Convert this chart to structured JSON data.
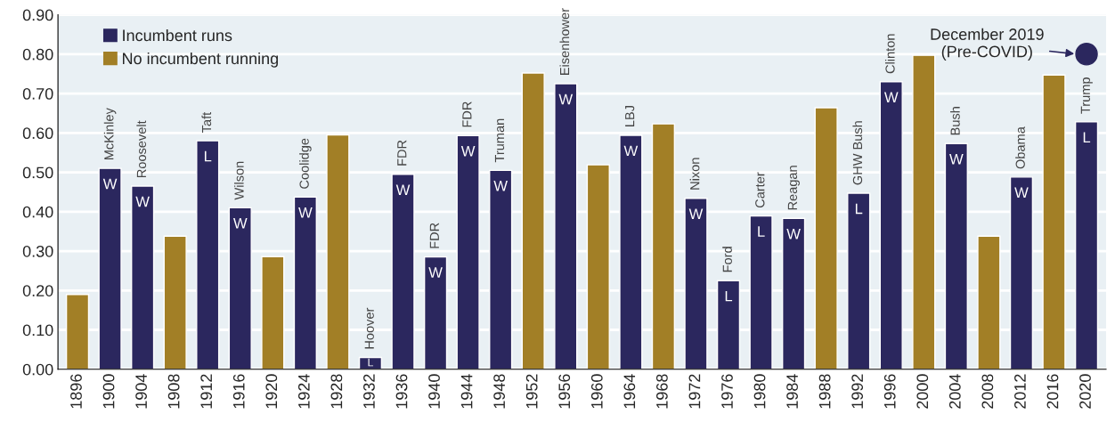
{
  "chart_data": {
    "type": "bar",
    "categories": [
      "1896",
      "1900",
      "1904",
      "1908",
      "1912",
      "1916",
      "1920",
      "1924",
      "1928",
      "1932",
      "1936",
      "1940",
      "1944",
      "1948",
      "1952",
      "1956",
      "1960",
      "1964",
      "1968",
      "1972",
      "1976",
      "1980",
      "1984",
      "1988",
      "1992",
      "1996",
      "2000",
      "2004",
      "2008",
      "2012",
      "2016",
      "2020"
    ],
    "series": [
      {
        "name": "Incumbent runs",
        "color": "#2b275e",
        "values": [
          null,
          0.51,
          0.465,
          null,
          0.58,
          0.41,
          null,
          0.437,
          null,
          0.03,
          0.495,
          0.285,
          0.593,
          0.505,
          null,
          0.725,
          null,
          0.594,
          null,
          0.434,
          0.225,
          0.389,
          0.383,
          null,
          0.447,
          0.73,
          null,
          0.573,
          null,
          0.488,
          null,
          0.628
        ],
        "value_labels": [
          null,
          "W",
          "W",
          null,
          "L",
          "W",
          null,
          "W",
          null,
          "L",
          "W",
          "W",
          "W",
          "W",
          null,
          "W",
          null,
          "W",
          null,
          "W",
          "L",
          "L",
          "W",
          null,
          "L",
          "W",
          null,
          "W",
          null,
          "W",
          null,
          "L"
        ]
      },
      {
        "name": "No incumbent running",
        "color": "#a27f26",
        "values": [
          0.19,
          null,
          null,
          0.338,
          null,
          null,
          0.286,
          null,
          0.595,
          null,
          null,
          null,
          null,
          null,
          0.752,
          null,
          0.519,
          null,
          0.623,
          null,
          null,
          null,
          null,
          0.664,
          null,
          null,
          0.797,
          null,
          0.338,
          null,
          0.747,
          null
        ]
      },
      {
        "type": "scatter",
        "color": "#2b275e",
        "marker": "circle",
        "values": [
          null,
          null,
          null,
          null,
          null,
          null,
          null,
          null,
          null,
          null,
          null,
          null,
          null,
          null,
          null,
          null,
          null,
          null,
          null,
          null,
          null,
          null,
          null,
          null,
          null,
          null,
          null,
          null,
          null,
          null,
          null,
          0.8
        ]
      }
    ],
    "annotations": [
      {
        "text": "McKinley",
        "x": "1900",
        "y": 0.51
      },
      {
        "text": "Roosevelt",
        "x": "1904",
        "y": 0.465
      },
      {
        "text": "Taft",
        "x": "1912",
        "y": 0.58
      },
      {
        "text": "Wilson",
        "x": "1916",
        "y": 0.41
      },
      {
        "text": "Coolidge",
        "x": "1924",
        "y": 0.437
      },
      {
        "text": "Hoover",
        "x": "1932",
        "y": 0.03
      },
      {
        "text": "FDR",
        "x": "1936",
        "y": 0.495
      },
      {
        "text": "FDR",
        "x": "1940",
        "y": 0.285
      },
      {
        "text": "FDR",
        "x": "1944",
        "y": 0.593
      },
      {
        "text": "Truman",
        "x": "1948",
        "y": 0.505
      },
      {
        "text": "Eisenhower",
        "x": "1956",
        "y": 0.725
      },
      {
        "text": "LBJ",
        "x": "1964",
        "y": 0.594
      },
      {
        "text": "Nixon",
        "x": "1972",
        "y": 0.434
      },
      {
        "text": "Ford",
        "x": "1976",
        "y": 0.225
      },
      {
        "text": "Carter",
        "x": "1980",
        "y": 0.389
      },
      {
        "text": "Reagan",
        "x": "1984",
        "y": 0.383
      },
      {
        "text": "GHW Bush",
        "x": "1992",
        "y": 0.447
      },
      {
        "text": "Clinton",
        "x": "1996",
        "y": 0.73
      },
      {
        "text": "Bush",
        "x": "2004",
        "y": 0.573
      },
      {
        "text": "Obama",
        "x": "2012",
        "y": 0.488
      },
      {
        "text": "Trump",
        "x": "2020",
        "y": 0.628
      },
      {
        "text": "December 2019\n(Pre-COVID)",
        "x": "2020",
        "y": 0.8
      }
    ],
    "ylim": [
      0,
      0.9
    ],
    "yticks": [
      {
        "value": 0,
        "label": "0.00"
      },
      {
        "value": 0.1,
        "label": "0.10"
      },
      {
        "value": 0.2,
        "label": "0.20"
      },
      {
        "value": 0.3,
        "label": "0.30"
      },
      {
        "value": 0.4,
        "label": "0.40"
      },
      {
        "value": 0.5,
        "label": "0.50"
      },
      {
        "value": 0.6,
        "label": "0.60"
      },
      {
        "value": 0.7,
        "label": "0.70"
      },
      {
        "value": 0.8,
        "label": "0.80"
      },
      {
        "value": 0.9,
        "label": "0.90"
      }
    ],
    "grid": "y",
    "legend": "top left"
  }
}
